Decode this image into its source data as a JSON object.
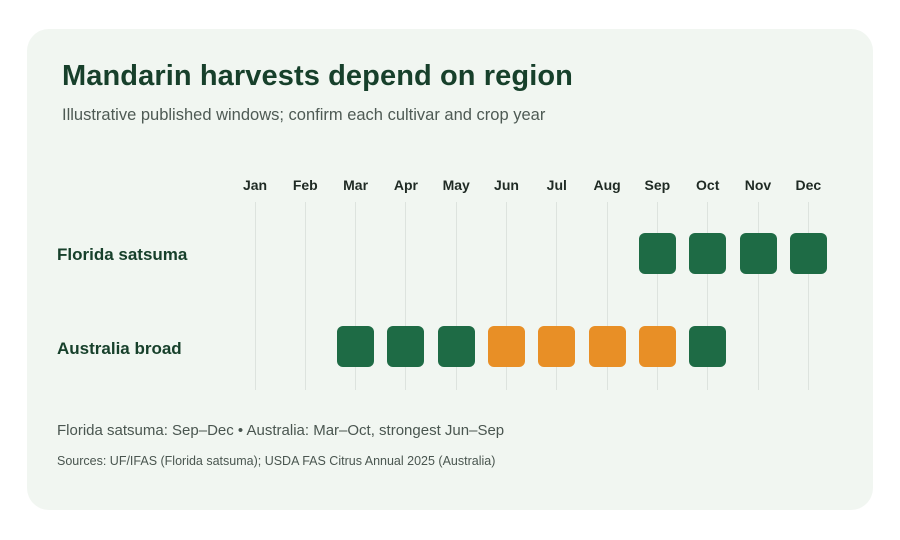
{
  "colors": {
    "green": "#1e6b45",
    "orange": "#e88f26",
    "card": "#f1f6f1"
  },
  "header": {
    "title": "Mandarin harvests depend on region",
    "subtitle": "Illustrative published windows; confirm each cultivar and crop year"
  },
  "chart_data": {
    "type": "heatmap",
    "x": [
      "Jan",
      "Feb",
      "Mar",
      "Apr",
      "May",
      "Jun",
      "Jul",
      "Aug",
      "Sep",
      "Oct",
      "Nov",
      "Dec"
    ],
    "rows": [
      {
        "label": "Florida satsuma",
        "cells": [
          {
            "month": "Sep",
            "level": "harvest"
          },
          {
            "month": "Oct",
            "level": "harvest"
          },
          {
            "month": "Nov",
            "level": "harvest"
          },
          {
            "month": "Dec",
            "level": "harvest"
          }
        ]
      },
      {
        "label": "Australia broad",
        "cells": [
          {
            "month": "Mar",
            "level": "harvest"
          },
          {
            "month": "Apr",
            "level": "harvest"
          },
          {
            "month": "May",
            "level": "harvest"
          },
          {
            "month": "Jun",
            "level": "strongest"
          },
          {
            "month": "Jul",
            "level": "strongest"
          },
          {
            "month": "Aug",
            "level": "strongest"
          },
          {
            "month": "Sep",
            "level": "strongest"
          },
          {
            "month": "Oct",
            "level": "harvest"
          }
        ]
      }
    ],
    "level_colors": {
      "harvest": "#1e6b45",
      "strongest": "#e88f26"
    },
    "grid": true,
    "legend": "none"
  },
  "footer": {
    "summary": "Florida satsuma: Sep–Dec • Australia: Mar–Oct, strongest Jun–Sep",
    "sources": "Sources: UF/IFAS (Florida satsuma); USDA FAS Citrus Annual 2025 (Australia)"
  }
}
